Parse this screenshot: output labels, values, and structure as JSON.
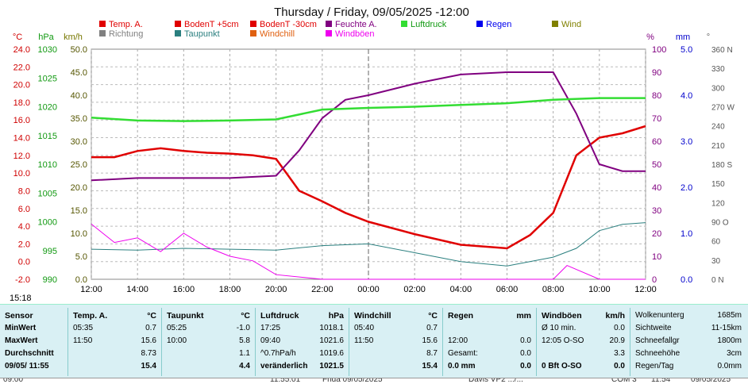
{
  "chart_data": {
    "type": "line",
    "title": "Thursday / Friday, 09/05/2025  -12:00",
    "x_labels": [
      "12:00",
      "14:00",
      "16:00",
      "18:00",
      "20:00",
      "22:00",
      "00:00",
      "02:00",
      "04:00",
      "06:00",
      "08:00",
      "10:00",
      "12:00"
    ],
    "axes": {
      "celsius": {
        "unit": "°C",
        "ticks": [
          "24.0",
          "22.0",
          "20.0",
          "18.0",
          "16.0",
          "14.0",
          "12.0",
          "10.0",
          "8.0",
          "6.0",
          "4.0",
          "2.0",
          "0.0",
          "-2.0"
        ],
        "range": [
          -2,
          24
        ]
      },
      "hpa": {
        "unit": "hPa",
        "ticks": [
          "1030",
          "1025",
          "1020",
          "1015",
          "1010",
          "1005",
          "1000",
          "995",
          "990"
        ],
        "range": [
          990,
          1030
        ]
      },
      "kmh": {
        "unit": "km/h",
        "ticks": [
          "50.0",
          "45.0",
          "40.0",
          "35.0",
          "30.0",
          "25.0",
          "20.0",
          "15.0",
          "10.0",
          "5.0",
          "0.0"
        ],
        "range": [
          0,
          50
        ]
      },
      "percent": {
        "unit": "%",
        "ticks": [
          "100",
          "90",
          "80",
          "70",
          "60",
          "50",
          "40",
          "30",
          "20",
          "10",
          "0"
        ],
        "range": [
          0,
          100
        ]
      },
      "mm": {
        "unit": "mm",
        "ticks": [
          "5.0",
          "4.0",
          "3.0",
          "2.0",
          "1.0",
          "0.0"
        ],
        "range": [
          0,
          5
        ]
      },
      "direction": {
        "unit": "°",
        "ticks": [
          "360 N",
          "330",
          "300",
          "270 W",
          "240",
          "210",
          "180 S",
          "150",
          "120",
          "90 O",
          "60",
          "30",
          "0 N"
        ],
        "range": [
          0,
          360
        ]
      }
    },
    "legend": [
      {
        "name": "Temp. A.",
        "color": "#e00000"
      },
      {
        "name": "BodenT +5cm",
        "color": "#e00000"
      },
      {
        "name": "BodenT -30cm",
        "color": "#e00000"
      },
      {
        "name": "Feuchte A.",
        "color": "#800080"
      },
      {
        "name": "Luftdruck",
        "color": "#33dd33"
      },
      {
        "name": "Regen",
        "color": "#0000ee"
      },
      {
        "name": "Wind",
        "color": "#808000"
      },
      {
        "name": "Richtung",
        "color": "#808080"
      },
      {
        "name": "Taupunkt",
        "color": "#2a7f7f"
      },
      {
        "name": "Windchill",
        "color": "#e06010"
      },
      {
        "name": "Windböen",
        "color": "#ee00ee"
      }
    ],
    "series": [
      {
        "name": "Temp. A.",
        "axis": "celsius",
        "x": [
          0,
          0.5,
          1,
          1.5,
          2,
          2.5,
          3,
          3.5,
          4,
          4.5,
          5,
          5.5,
          6,
          7,
          8,
          9,
          9.5,
          10,
          10.5,
          11,
          11.5,
          12
        ],
        "y": [
          11.8,
          11.8,
          12.5,
          12.8,
          12.5,
          12.3,
          12.2,
          12.0,
          11.6,
          8.0,
          6.8,
          5.5,
          4.5,
          3.1,
          1.9,
          1.5,
          3.0,
          5.5,
          12.0,
          14.0,
          14.5,
          15.3
        ]
      },
      {
        "name": "Feuchte A.",
        "axis": "percent",
        "x": [
          0,
          1,
          2,
          3,
          4,
          4.5,
          5,
          5.5,
          6,
          7,
          8,
          9,
          10,
          10.5,
          11,
          11.5,
          12
        ],
        "y": [
          43,
          44,
          44,
          44,
          45,
          56,
          70,
          78,
          80,
          85,
          89,
          90,
          90,
          72,
          50,
          47,
          47
        ]
      },
      {
        "name": "Luftdruck",
        "axis": "hpa",
        "x": [
          0,
          1,
          2,
          3,
          4,
          5,
          6,
          7,
          8,
          9,
          10,
          11,
          12
        ],
        "y": [
          1018.1,
          1017.6,
          1017.5,
          1017.6,
          1017.8,
          1019.5,
          1019.8,
          1020.0,
          1020.3,
          1020.6,
          1021.2,
          1021.5,
          1021.5
        ]
      },
      {
        "name": "Taupunkt",
        "axis": "celsius",
        "x": [
          0,
          1,
          2,
          3,
          4,
          5,
          6,
          7,
          8,
          9,
          10,
          10.5,
          11,
          11.5,
          12
        ],
        "y": [
          1.4,
          1.3,
          1.5,
          1.4,
          1.3,
          1.8,
          2.0,
          1.0,
          0.0,
          -0.5,
          0.5,
          1.5,
          3.5,
          4.2,
          4.4
        ]
      },
      {
        "name": "Windböen",
        "axis": "kmh",
        "x": [
          0,
          0.5,
          1,
          1.5,
          2,
          2.5,
          3,
          3.5,
          4,
          5,
          8,
          9,
          10,
          10.3,
          11,
          12
        ],
        "y": [
          12,
          8,
          9,
          6,
          10,
          7,
          5,
          4,
          1,
          0,
          0,
          0,
          0,
          3,
          0,
          0
        ]
      }
    ]
  },
  "status": {
    "time": "15:18"
  },
  "stats": {
    "sensor": {
      "header": "Sensor",
      "rows": [
        "MinWert",
        "MaxWert",
        "Durchschnitt",
        "09/05/ 11:55"
      ]
    },
    "temp": {
      "header": "Temp. A.",
      "unit": "°C",
      "rows": [
        [
          "05:35",
          "0.7"
        ],
        [
          "11:50",
          "15.6"
        ],
        [
          "",
          "8.73"
        ],
        [
          "",
          "15.4"
        ]
      ]
    },
    "taupunkt": {
      "header": "Taupunkt",
      "unit": "°C",
      "rows": [
        [
          "05:25",
          "-1.0"
        ],
        [
          "10:00",
          "5.8"
        ],
        [
          "",
          "1.1"
        ],
        [
          "",
          "4.4"
        ]
      ]
    },
    "luftdruck": {
      "header": "Luftdruck",
      "unit": "hPa",
      "rows": [
        [
          "17:25",
          "1018.1"
        ],
        [
          "09:40",
          "1021.6"
        ],
        [
          "^0.7hPa/h",
          "1019.6"
        ],
        [
          "veränderlich",
          "1021.5"
        ]
      ]
    },
    "windchill": {
      "header": "Windchill",
      "unit": "°C",
      "rows": [
        [
          "05:40",
          "0.7"
        ],
        [
          "11:50",
          "15.6"
        ],
        [
          "",
          "8.7"
        ],
        [
          "",
          "15.4"
        ]
      ]
    },
    "regen": {
      "header": "Regen",
      "unit": "mm",
      "rows": [
        [
          "",
          ""
        ],
        [
          "12:00",
          "0.0"
        ],
        [
          "Gesamt:",
          "0.0"
        ],
        [
          "0.0 mm",
          "0.0"
        ]
      ]
    },
    "windboeen": {
      "header": "Windböen",
      "unit": "km/h",
      "rows": [
        [
          "Ø 10 min.",
          "0.0"
        ],
        [
          "12:05   O-SO",
          "20.9"
        ],
        [
          "",
          "3.3"
        ],
        [
          "0 Bft O-SO",
          "0.0"
        ]
      ]
    },
    "misc": {
      "rows": [
        [
          "Wolkenunterg",
          "1685m"
        ],
        [
          "Sichtweite",
          "11-15km"
        ],
        [
          "Schneefallgr",
          "1800m"
        ],
        [
          "Schneehöhe",
          "3cm"
        ],
        [
          "Regen/Tag",
          "0.0mm"
        ]
      ]
    }
  },
  "bottom": [
    "09:00",
    "11:55:01",
    "Frida 09/05/2025",
    "Davis VP2 .../...",
    "COM 3",
    "11:54",
    "09/05/2025"
  ]
}
